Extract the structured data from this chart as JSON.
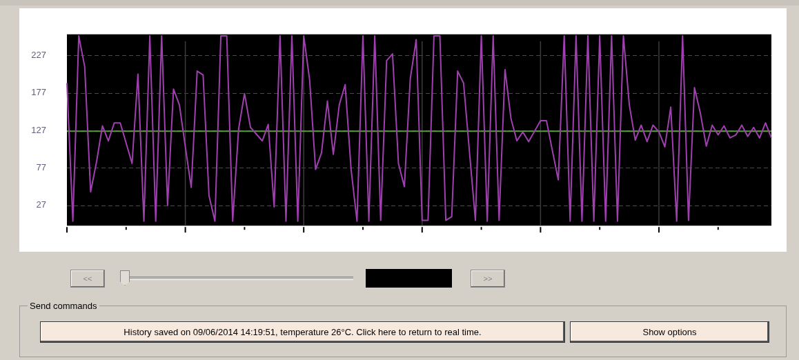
{
  "chart_data": {
    "type": "line",
    "categories": [
      null,
      null,
      null,
      null,
      null,
      null,
      null,
      null,
      null,
      null,
      null,
      null,
      null,
      null,
      null,
      null,
      null,
      null,
      null,
      null,
      null,
      null,
      null,
      null,
      null,
      null,
      null,
      null,
      null,
      null,
      null,
      null,
      null,
      null,
      null,
      null,
      null,
      null,
      null,
      null,
      null,
      null,
      null,
      null,
      null,
      null,
      null,
      null,
      null,
      null,
      null,
      null,
      null,
      null,
      null,
      null,
      null,
      null,
      null,
      null,
      null,
      null,
      null,
      null,
      null,
      null,
      null,
      null,
      null,
      null,
      null,
      null,
      null,
      null,
      null,
      null,
      null,
      null,
      null,
      null,
      null,
      null,
      null,
      null,
      null,
      null,
      null,
      null,
      null,
      null,
      null,
      null,
      null,
      null,
      null,
      null,
      null,
      null,
      null,
      null,
      null,
      null,
      null,
      null,
      null,
      null,
      null,
      null,
      null,
      null,
      null,
      null,
      null,
      null,
      null,
      null,
      null,
      null,
      null,
      null
    ],
    "series": [
      {
        "color": "#a040b0",
        "values": [
          190,
          6,
          253,
          212,
          45,
          85,
          133,
          113,
          137,
          137,
          110,
          83,
          202,
          6,
          253,
          6,
          253,
          27,
          182,
          161,
          105,
          51,
          206,
          201,
          40,
          6,
          253,
          253,
          6,
          129,
          176,
          131,
          122,
          113,
          135,
          25,
          253,
          6,
          253,
          6,
          253,
          194,
          75,
          97,
          166,
          95,
          161,
          188,
          75,
          6,
          253,
          6,
          253,
          7,
          220,
          229,
          83,
          52,
          196,
          248,
          7,
          7,
          253,
          253,
          7,
          12,
          206,
          190,
          98,
          7,
          253,
          6,
          253,
          7,
          208,
          143,
          113,
          125,
          112,
          126,
          140,
          140,
          100,
          61,
          253,
          6,
          253,
          6,
          253,
          6,
          253,
          6,
          253,
          6,
          253,
          161,
          114,
          134,
          112,
          134,
          125,
          105,
          158,
          6,
          253,
          7,
          184,
          150,
          106,
          134,
          121,
          133,
          117,
          121,
          134,
          119,
          131,
          117,
          137,
          117
        ]
      }
    ],
    "ylim": [
      0,
      255
    ],
    "yticks": [
      27,
      77,
      127,
      177,
      227
    ],
    "ref_lines": [
      {
        "axis": "y",
        "value": 126,
        "color": "#5a9a3a"
      }
    ],
    "grid": true,
    "tick_labels": "y",
    "marker": "none",
    "line_style": "solid",
    "annotations": [
      "<<",
      ">>",
      "Send commands",
      "History saved on 09/06/2014 14:19:51, temperature 26°C. Click here to return to real time.",
      "Show options"
    ]
  }
}
